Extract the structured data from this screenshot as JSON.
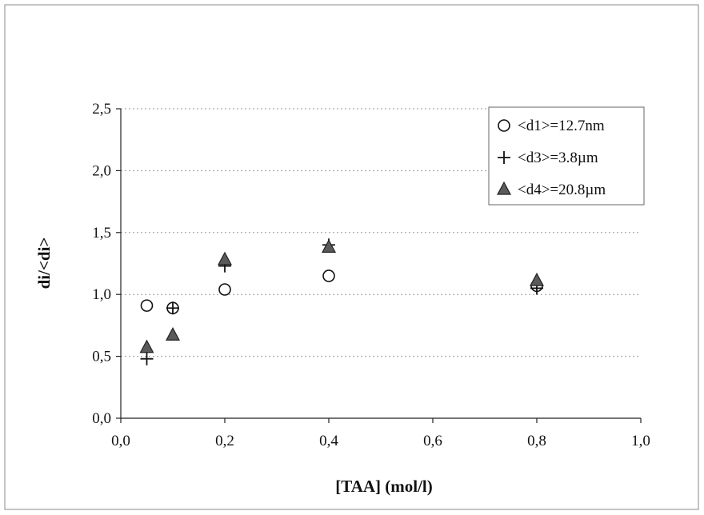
{
  "chart_data": {
    "type": "scatter",
    "title": "",
    "xlabel": "[TAA] (mol/l)",
    "ylabel": "di/<di>",
    "xlim": [
      0.0,
      1.0
    ],
    "ylim": [
      0.0,
      2.5
    ],
    "x_ticks": [
      "0,0",
      "0,2",
      "0,4",
      "0,6",
      "0,8",
      "1,0"
    ],
    "y_ticks": [
      "0,0",
      "0,5",
      "1,0",
      "1,5",
      "2,0",
      "2,5"
    ],
    "grid": "horizontal dashed",
    "legend_position": "top-right",
    "series": [
      {
        "name": "<d1>=12.7nm",
        "marker": "circle-open",
        "points": [
          [
            0.05,
            0.91
          ],
          [
            0.1,
            0.89
          ],
          [
            0.2,
            1.04
          ],
          [
            0.4,
            1.15
          ],
          [
            0.8,
            1.07
          ]
        ]
      },
      {
        "name": "<d3>=3.8µm",
        "marker": "plus",
        "points": [
          [
            0.05,
            0.48
          ],
          [
            0.1,
            0.89
          ],
          [
            0.2,
            1.23
          ],
          [
            0.4,
            1.4
          ],
          [
            0.8,
            1.05
          ]
        ]
      },
      {
        "name": "<d4>=20.8µm",
        "marker": "triangle-filled",
        "points": [
          [
            0.05,
            0.57
          ],
          [
            0.1,
            0.67
          ],
          [
            0.2,
            1.28
          ],
          [
            0.4,
            1.38
          ],
          [
            0.8,
            1.11
          ]
        ]
      }
    ]
  },
  "colors": {
    "marker": "#111111",
    "triangle_fill": "#5a5a5a",
    "grid": "#9a9a9a",
    "frame": "#888888"
  }
}
